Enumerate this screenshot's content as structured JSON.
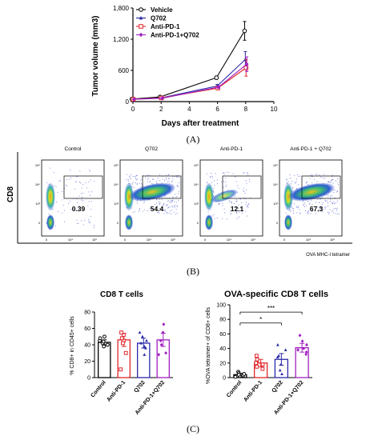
{
  "panels": {
    "A": {
      "label": "(A)"
    },
    "B": {
      "label": "(B)"
    },
    "C": {
      "label": "(C)"
    }
  },
  "chart_data": [
    {
      "type": "line",
      "panel": "A",
      "title": "",
      "xlabel": "Days after treatment",
      "ylabel": "Tumor volume (mm3)",
      "xlim": [
        0,
        10
      ],
      "ylim": [
        0,
        1800
      ],
      "xticks": [
        "0",
        "2",
        "4",
        "6",
        "8",
        "10"
      ],
      "yticks": [
        "0",
        "600",
        "1,200",
        "1,800"
      ],
      "x": [
        0,
        2,
        6,
        8
      ],
      "legend_position": "top-left",
      "series": [
        {
          "name": "Vehicle",
          "color": "#000000",
          "marker": "open-circle",
          "values": [
            50,
            90,
            460,
            1360
          ],
          "errors": [
            10,
            15,
            30,
            180
          ]
        },
        {
          "name": "Q702",
          "color": "#2a2aa8",
          "marker": "filled-triangle",
          "values": [
            45,
            70,
            300,
            810
          ],
          "errors": [
            8,
            12,
            30,
            150
          ]
        },
        {
          "name": "Anti-PD-1",
          "color": "#e0262a",
          "marker": "open-square",
          "values": [
            45,
            70,
            260,
            650
          ],
          "errors": [
            8,
            12,
            30,
            160
          ]
        },
        {
          "name": "Anti-PD-1+Q702",
          "color": "#a020c0",
          "marker": "filled-diamond",
          "values": [
            45,
            65,
            280,
            720
          ],
          "errors": [
            8,
            10,
            25,
            140
          ]
        }
      ]
    },
    {
      "type": "scatter",
      "panel": "B",
      "subtype": "flow-cytometry",
      "ylabel": "CD8",
      "xlabel": "OVA MHC-I tetramer",
      "plots": [
        {
          "title": "Control",
          "gate_percent": "0.39",
          "color_scheme": "sparse"
        },
        {
          "title": "Q702",
          "gate_percent": "54.4",
          "color_scheme": "dense"
        },
        {
          "title": "Anti-PD-1",
          "gate_percent": "12.1",
          "color_scheme": "medium"
        },
        {
          "title": "Anti-PD-1 + Q702",
          "gate_percent": "67.3",
          "color_scheme": "dense"
        }
      ]
    },
    {
      "type": "bar",
      "panel": "C1",
      "title": "CD8 T cells",
      "ylabel": "% CD8+ in CD45+ cells",
      "ylim": [
        0,
        80
      ],
      "yticks": [
        "0",
        "20",
        "40",
        "60",
        "80"
      ],
      "categories": [
        "Control",
        "Anti-PD-1",
        "Q702",
        "Anti-PD-1+Q702"
      ],
      "colors": [
        "#000000",
        "#e0262a",
        "#2a2aa8",
        "#a020c0"
      ],
      "markers": [
        "open-circle",
        "open-square",
        "filled-triangle",
        "filled-diamond"
      ],
      "values": [
        43,
        46,
        42,
        46
      ],
      "errors": [
        3,
        8,
        6,
        8
      ],
      "points": [
        [
          45,
          38,
          42,
          48,
          40,
          44,
          50
        ],
        [
          52,
          45,
          48,
          55,
          30,
          10,
          42
        ],
        [
          38,
          45,
          50,
          55,
          42,
          36,
          28
        ],
        [
          65,
          55,
          45,
          40,
          30,
          28
        ]
      ]
    },
    {
      "type": "bar",
      "panel": "C2",
      "title": "OVA-specific CD8 T cells",
      "ylabel": "%OVA tetramer+ of CD8+ cells",
      "ylim": [
        0,
        100
      ],
      "yticks": [
        "0",
        "20",
        "40",
        "60",
        "80",
        "100"
      ],
      "categories": [
        "Control",
        "Anti-PD-1",
        "Q702",
        "Anti-PD-1+Q702"
      ],
      "colors": [
        "#000000",
        "#e0262a",
        "#2a2aa8",
        "#a020c0"
      ],
      "markers": [
        "open-circle",
        "open-square",
        "filled-triangle",
        "filled-diamond"
      ],
      "values": [
        4,
        20,
        25,
        41
      ],
      "errors": [
        2,
        5,
        8,
        6
      ],
      "points": [
        [
          1,
          3,
          5,
          8,
          2,
          6,
          4
        ],
        [
          12,
          18,
          22,
          25,
          30,
          15,
          20
        ],
        [
          5,
          10,
          18,
          30,
          45,
          38,
          28
        ],
        [
          32,
          38,
          45,
          50,
          58,
          40,
          35
        ]
      ],
      "significance": [
        {
          "from": 0,
          "to": 3,
          "label": "***"
        },
        {
          "from": 0,
          "to": 2,
          "label": "*"
        }
      ]
    }
  ]
}
